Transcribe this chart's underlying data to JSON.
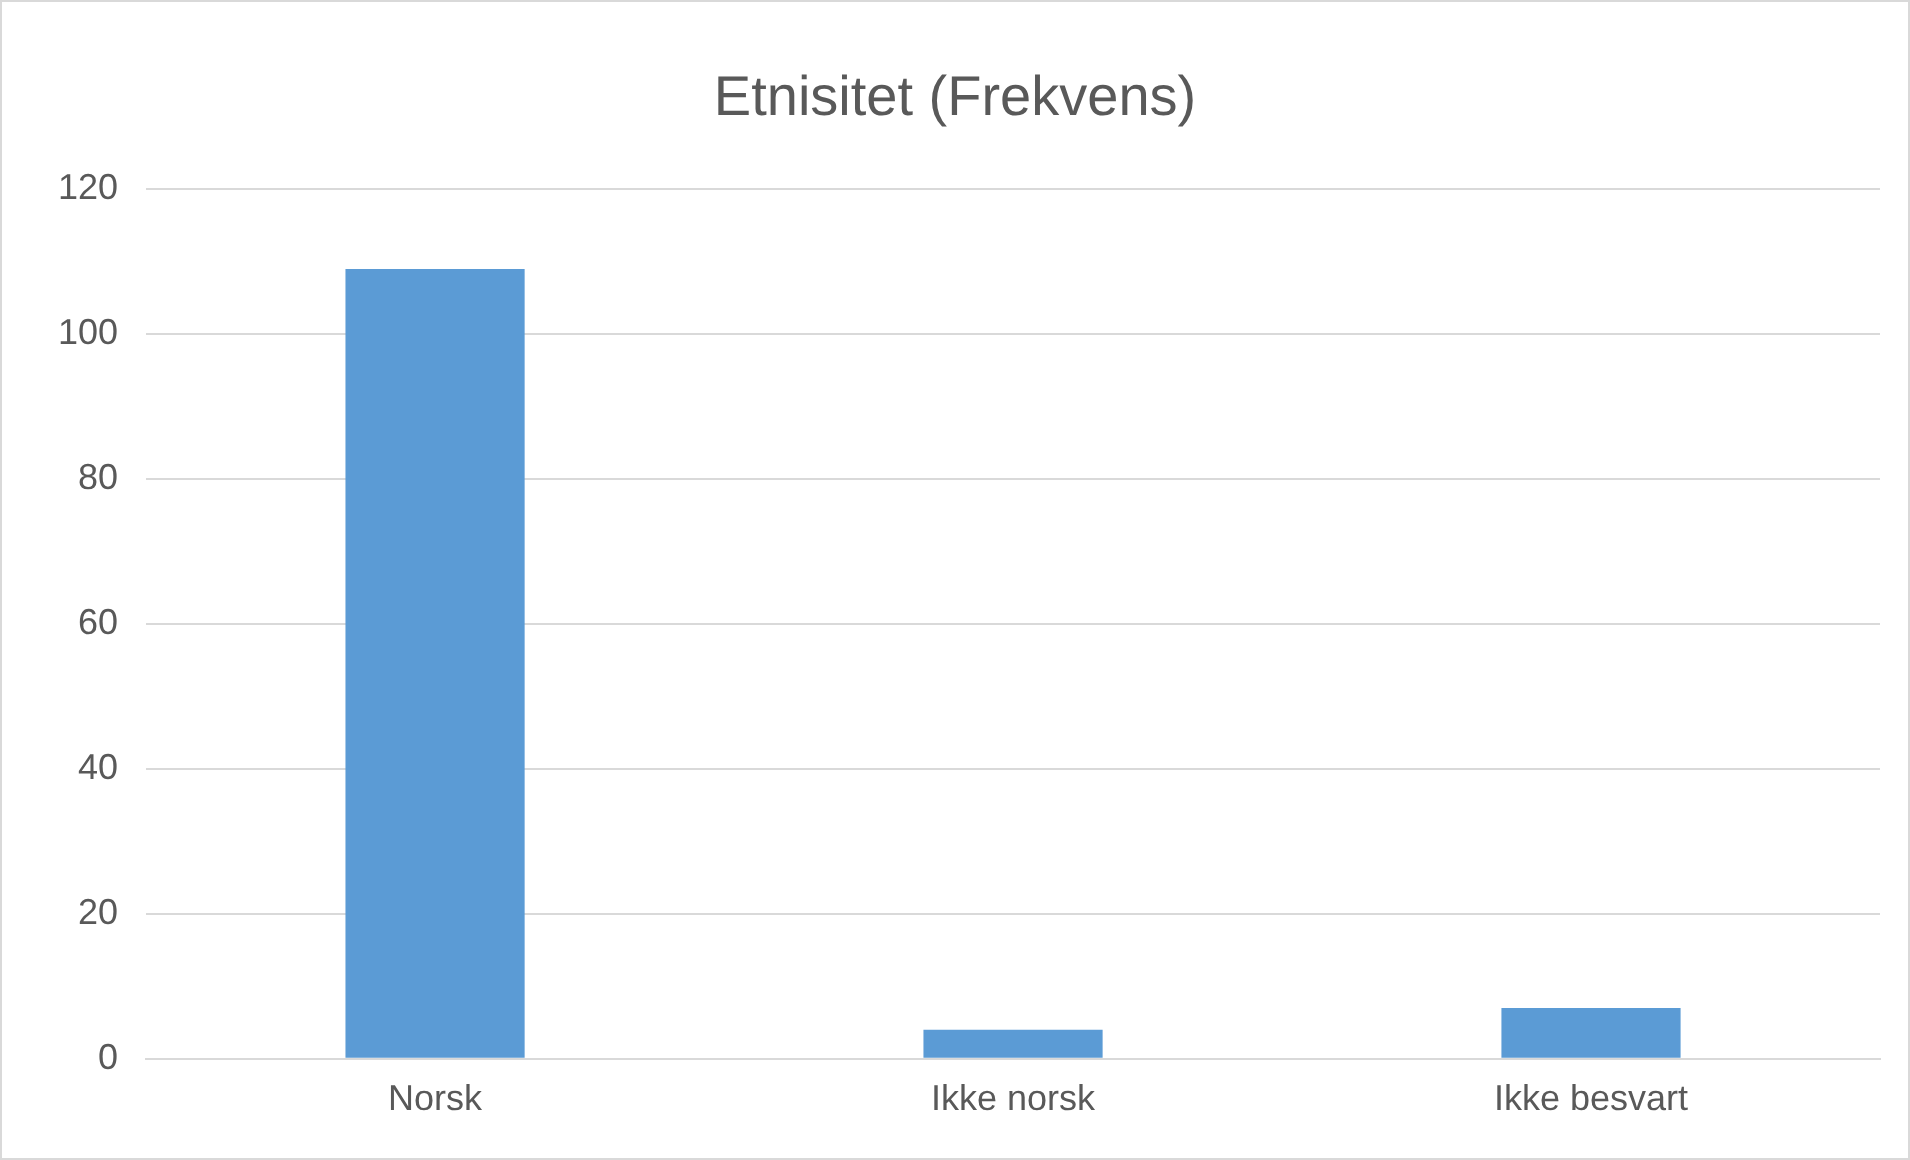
{
  "chart_data": {
    "type": "bar",
    "title": "Etnisitet (Frekvens)",
    "categories": [
      "Norsk",
      "Ikke norsk",
      "Ikke besvart"
    ],
    "values": [
      109,
      4,
      7
    ],
    "color": "#5b9bd5",
    "ylim": [
      0,
      120
    ],
    "yticks": [
      0,
      20,
      40,
      60,
      80,
      100,
      120
    ],
    "grid": "y",
    "legend": false
  }
}
